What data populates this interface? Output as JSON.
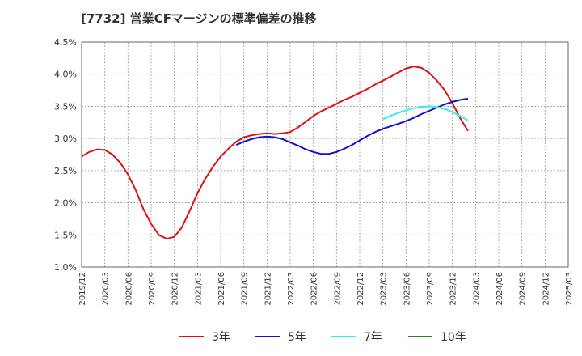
{
  "chart_data": {
    "type": "line",
    "title": "[7732]  営業CFマージンの標準偏差の推移",
    "x_categories": [
      "2019/12",
      "2020/03",
      "2020/06",
      "2020/09",
      "2020/12",
      "2021/03",
      "2021/06",
      "2021/09",
      "2021/12",
      "2022/03",
      "2022/06",
      "2022/09",
      "2022/12",
      "2023/03",
      "2023/06",
      "2023/09",
      "2023/12",
      "2024/03",
      "2024/06",
      "2024/09",
      "2024/12",
      "2025/03"
    ],
    "y_ticks": [
      "1.0%",
      "1.5%",
      "2.0%",
      "2.5%",
      "3.0%",
      "3.5%",
      "4.0%",
      "4.5%"
    ],
    "ylim": [
      1.0,
      4.5
    ],
    "grid": true,
    "legend_position": "bottom",
    "series": [
      {
        "name": "3年",
        "color": "#dd1111",
        "points": [
          [
            0,
            2.72
          ],
          [
            0.33,
            2.79
          ],
          [
            0.67,
            2.83
          ],
          [
            1,
            2.82
          ],
          [
            1.33,
            2.75
          ],
          [
            1.67,
            2.62
          ],
          [
            2,
            2.44
          ],
          [
            2.33,
            2.2
          ],
          [
            2.67,
            1.9
          ],
          [
            3,
            1.67
          ],
          [
            3.33,
            1.5
          ],
          [
            3.67,
            1.44
          ],
          [
            4,
            1.47
          ],
          [
            4.33,
            1.62
          ],
          [
            4.67,
            1.88
          ],
          [
            5,
            2.15
          ],
          [
            5.33,
            2.37
          ],
          [
            5.67,
            2.56
          ],
          [
            6,
            2.72
          ],
          [
            6.33,
            2.84
          ],
          [
            6.67,
            2.95
          ],
          [
            7,
            3.02
          ],
          [
            7.33,
            3.05
          ],
          [
            7.67,
            3.07
          ],
          [
            8,
            3.08
          ],
          [
            8.33,
            3.07
          ],
          [
            8.67,
            3.08
          ],
          [
            9,
            3.1
          ],
          [
            9.33,
            3.17
          ],
          [
            9.67,
            3.26
          ],
          [
            10,
            3.35
          ],
          [
            10.33,
            3.42
          ],
          [
            10.67,
            3.48
          ],
          [
            11,
            3.54
          ],
          [
            11.33,
            3.6
          ],
          [
            11.67,
            3.65
          ],
          [
            12,
            3.71
          ],
          [
            12.33,
            3.77
          ],
          [
            12.67,
            3.84
          ],
          [
            13,
            3.9
          ],
          [
            13.33,
            3.96
          ],
          [
            13.67,
            4.03
          ],
          [
            14,
            4.09
          ],
          [
            14.33,
            4.12
          ],
          [
            14.67,
            4.1
          ],
          [
            15,
            4.02
          ],
          [
            15.33,
            3.9
          ],
          [
            15.67,
            3.75
          ],
          [
            16,
            3.55
          ],
          [
            16.33,
            3.32
          ],
          [
            16.67,
            3.12
          ]
        ]
      },
      {
        "name": "5年",
        "color": "#1111cc",
        "points": [
          [
            6.67,
            2.9
          ],
          [
            7,
            2.95
          ],
          [
            7.33,
            2.99
          ],
          [
            7.67,
            3.02
          ],
          [
            8,
            3.03
          ],
          [
            8.33,
            3.02
          ],
          [
            8.67,
            2.99
          ],
          [
            9,
            2.94
          ],
          [
            9.33,
            2.89
          ],
          [
            9.67,
            2.83
          ],
          [
            10,
            2.79
          ],
          [
            10.33,
            2.76
          ],
          [
            10.67,
            2.76
          ],
          [
            11,
            2.79
          ],
          [
            11.33,
            2.84
          ],
          [
            11.67,
            2.9
          ],
          [
            12,
            2.97
          ],
          [
            12.33,
            3.04
          ],
          [
            12.67,
            3.1
          ],
          [
            13,
            3.15
          ],
          [
            13.33,
            3.19
          ],
          [
            13.67,
            3.23
          ],
          [
            14,
            3.27
          ],
          [
            14.33,
            3.32
          ],
          [
            14.67,
            3.38
          ],
          [
            15,
            3.43
          ],
          [
            15.33,
            3.48
          ],
          [
            15.67,
            3.53
          ],
          [
            16,
            3.57
          ],
          [
            16.33,
            3.6
          ],
          [
            16.67,
            3.62
          ]
        ]
      },
      {
        "name": "7年",
        "color": "#33eeee",
        "points": [
          [
            13,
            3.3
          ],
          [
            13.33,
            3.35
          ],
          [
            13.67,
            3.4
          ],
          [
            14,
            3.44
          ],
          [
            14.33,
            3.47
          ],
          [
            14.67,
            3.49
          ],
          [
            15,
            3.5
          ],
          [
            15.33,
            3.49
          ],
          [
            15.67,
            3.46
          ],
          [
            16,
            3.41
          ],
          [
            16.33,
            3.35
          ],
          [
            16.67,
            3.28
          ]
        ]
      },
      {
        "name": "10年",
        "color": "#228822",
        "points": []
      }
    ]
  }
}
